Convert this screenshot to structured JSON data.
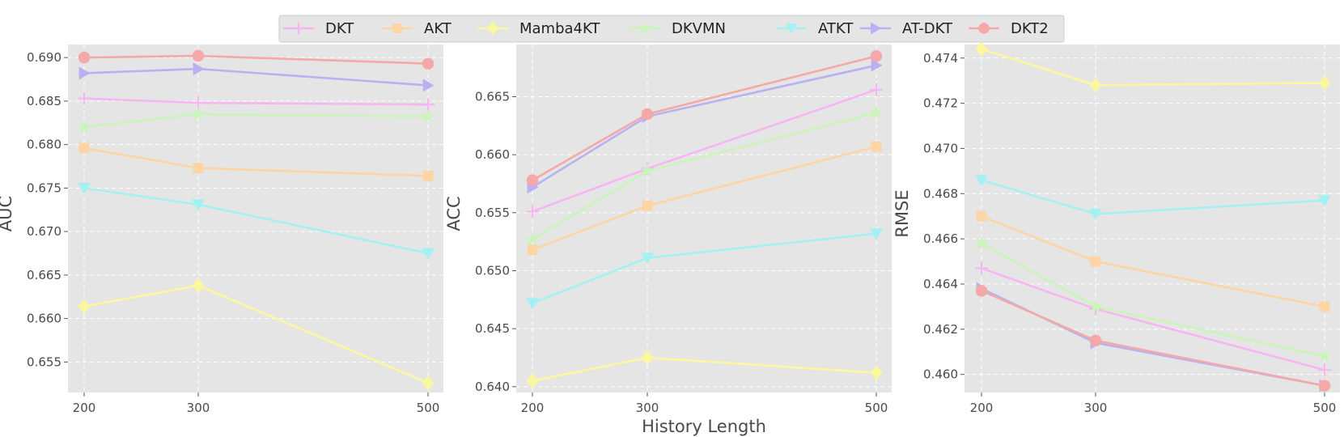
{
  "figure": {
    "xlabel": "History Length"
  },
  "legend": {
    "placement": "top-center",
    "entries": [
      {
        "name": "DKT",
        "color": "#f7b6f2",
        "marker": "plus"
      },
      {
        "name": "AKT",
        "color": "#fdd5a4",
        "marker": "square"
      },
      {
        "name": "Mamba4KT",
        "color": "#fbf7a0",
        "marker": "diamond"
      },
      {
        "name": "DKVMN",
        "color": "#c9f5b8",
        "marker": "star"
      },
      {
        "name": "ATKT",
        "color": "#a4f1f3",
        "marker": "triangle-down"
      },
      {
        "name": "AT-DKT",
        "color": "#b8b1f2",
        "marker": "triangle-right"
      },
      {
        "name": "DKT2",
        "color": "#f5a8a8",
        "marker": "circle"
      }
    ]
  },
  "chart_data": [
    {
      "type": "line",
      "ylabel": "AUC",
      "x": [
        200,
        300,
        500
      ],
      "xticks": [
        "200",
        "300",
        "500"
      ],
      "ylim": [
        0.6515,
        0.6915
      ],
      "yticks": [
        "0.655",
        "0.660",
        "0.665",
        "0.670",
        "0.675",
        "0.680",
        "0.685",
        "0.690"
      ],
      "grid": true,
      "series": [
        {
          "name": "DKT",
          "values": [
            0.6853,
            0.6848,
            0.6846
          ]
        },
        {
          "name": "AKT",
          "values": [
            0.6796,
            0.6773,
            0.6764
          ]
        },
        {
          "name": "Mamba4KT",
          "values": [
            0.6614,
            0.6638,
            0.6526
          ]
        },
        {
          "name": "DKVMN",
          "values": [
            0.682,
            0.6835,
            0.6832
          ]
        },
        {
          "name": "ATKT",
          "values": [
            0.675,
            0.6731,
            0.6675
          ]
        },
        {
          "name": "AT-DKT",
          "values": [
            0.6882,
            0.6887,
            0.6868
          ]
        },
        {
          "name": "DKT2",
          "values": [
            0.69,
            0.6902,
            0.6893
          ]
        }
      ]
    },
    {
      "type": "line",
      "ylabel": "ACC",
      "x": [
        200,
        300,
        500
      ],
      "xticks": [
        "200",
        "300",
        "500"
      ],
      "ylim": [
        0.6395,
        0.6695
      ],
      "yticks": [
        "0.640",
        "0.645",
        "0.650",
        "0.655",
        "0.660",
        "0.665"
      ],
      "grid": true,
      "series": [
        {
          "name": "DKT",
          "values": [
            0.6551,
            0.6588,
            0.6656
          ]
        },
        {
          "name": "AKT",
          "values": [
            0.6518,
            0.6556,
            0.6607
          ]
        },
        {
          "name": "Mamba4KT",
          "values": [
            0.6405,
            0.6425,
            0.6412
          ]
        },
        {
          "name": "DKVMN",
          "values": [
            0.6527,
            0.6586,
            0.6636
          ]
        },
        {
          "name": "ATKT",
          "values": [
            0.6472,
            0.6511,
            0.6532
          ]
        },
        {
          "name": "AT-DKT",
          "values": [
            0.6572,
            0.6633,
            0.6677
          ]
        },
        {
          "name": "DKT2",
          "values": [
            0.6578,
            0.6635,
            0.6685
          ]
        }
      ]
    },
    {
      "type": "line",
      "ylabel": "RMSE",
      "x": [
        200,
        300,
        500
      ],
      "xticks": [
        "200",
        "300",
        "500"
      ],
      "ylim": [
        0.4592,
        0.4746
      ],
      "yticks": [
        "0.460",
        "0.462",
        "0.464",
        "0.466",
        "0.468",
        "0.470",
        "0.472",
        "0.474"
      ],
      "grid": true,
      "series": [
        {
          "name": "DKT",
          "values": [
            0.4647,
            0.4629,
            0.4602
          ]
        },
        {
          "name": "AKT",
          "values": [
            0.467,
            0.465,
            0.463
          ]
        },
        {
          "name": "Mamba4KT",
          "values": [
            0.4744,
            0.4728,
            0.4729
          ]
        },
        {
          "name": "DKVMN",
          "values": [
            0.4658,
            0.463,
            0.4608
          ]
        },
        {
          "name": "ATKT",
          "values": [
            0.4686,
            0.4671,
            0.4677
          ]
        },
        {
          "name": "AT-DKT",
          "values": [
            0.4638,
            0.4614,
            0.4595
          ]
        },
        {
          "name": "DKT2",
          "values": [
            0.4637,
            0.4615,
            0.4595
          ]
        }
      ]
    }
  ]
}
